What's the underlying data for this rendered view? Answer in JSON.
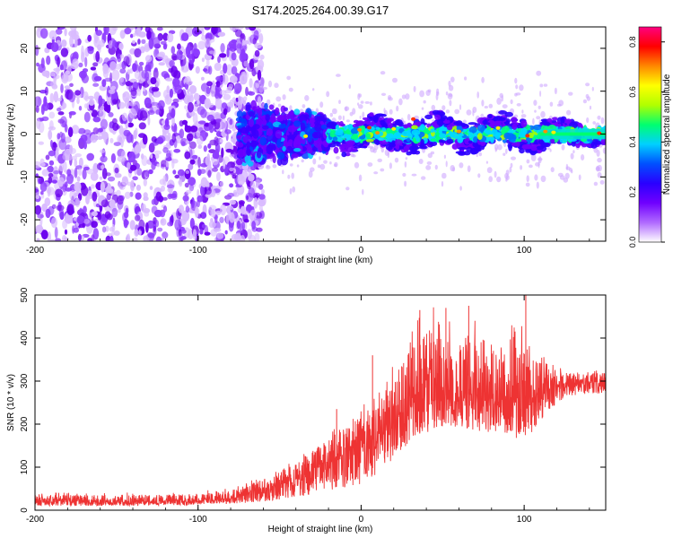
{
  "title": "S174.2025.264.00.39.G17",
  "chart_data": [
    {
      "type": "heatmap",
      "xlabel": "Height of straight line (km)",
      "ylabel": "Frequency (Hz)",
      "xlim": [
        -200,
        150
      ],
      "ylim": [
        -25,
        25
      ],
      "xticks": [
        -200,
        -100,
        0,
        100
      ],
      "yticks": [
        -20,
        -10,
        0,
        10,
        20
      ],
      "colorbar": {
        "label": "Normalized spectral amplitude",
        "range": [
          0.0,
          0.86
        ],
        "ticks": [
          0.0,
          0.2,
          0.4,
          0.6,
          0.8
        ],
        "colors": [
          "#ffffff",
          "#b06aff",
          "#7000ff",
          "#2a00ff",
          "#0050ff",
          "#00d0ff",
          "#00ff70",
          "#b0ff00",
          "#ffff00",
          "#ff8800",
          "#ff0000",
          "#ff0080"
        ]
      },
      "regions": [
        {
          "name": "noise",
          "x_range": [
            -200,
            -75
          ],
          "freq_range": [
            -25,
            25
          ],
          "amplitude": 0.1
        },
        {
          "name": "signal-onset",
          "x_range": [
            -75,
            -20
          ],
          "freq_center": 0,
          "freq_width": 8,
          "amplitude": 0.2
        },
        {
          "name": "signal-line",
          "x_range": [
            -20,
            150
          ],
          "freq_center": 0,
          "freq_width": 4,
          "amplitude": 0.45
        }
      ]
    },
    {
      "type": "line",
      "xlabel": "Height of straight line (km)",
      "ylabel": "SNR (10 * v/v)",
      "xlim": [
        -200,
        150
      ],
      "ylim": [
        0,
        500
      ],
      "xticks": [
        -200,
        -100,
        0,
        100
      ],
      "yticks": [
        0,
        100,
        200,
        300,
        400,
        500
      ],
      "color": "#ee3333",
      "envelope": {
        "x": [
          -200,
          -150,
          -100,
          -80,
          -60,
          -40,
          -20,
          0,
          10,
          20,
          30,
          40,
          50,
          60,
          70,
          80,
          90,
          100,
          110,
          120,
          130,
          140,
          150
        ],
        "mean": [
          20,
          20,
          22,
          28,
          45,
          70,
          110,
          145,
          170,
          200,
          240,
          260,
          265,
          270,
          268,
          265,
          262,
          260,
          265,
          285,
          295,
          300,
          300
        ],
        "lo": [
          10,
          10,
          12,
          15,
          20,
          30,
          45,
          60,
          85,
          120,
          160,
          180,
          185,
          190,
          185,
          180,
          170,
          165,
          200,
          250,
          265,
          270,
          270
        ],
        "hi": [
          35,
          35,
          38,
          45,
          75,
          110,
          165,
          215,
          250,
          300,
          380,
          410,
          420,
          410,
          400,
          395,
          390,
          380,
          350,
          325,
          320,
          320,
          320
        ]
      },
      "spikes": [
        {
          "x": -15,
          "y": 235
        },
        {
          "x": 7,
          "y": 360
        },
        {
          "x": 36,
          "y": 465
        },
        {
          "x": 52,
          "y": 470
        },
        {
          "x": 66,
          "y": 475
        },
        {
          "x": 101,
          "y": 500
        }
      ]
    }
  ]
}
